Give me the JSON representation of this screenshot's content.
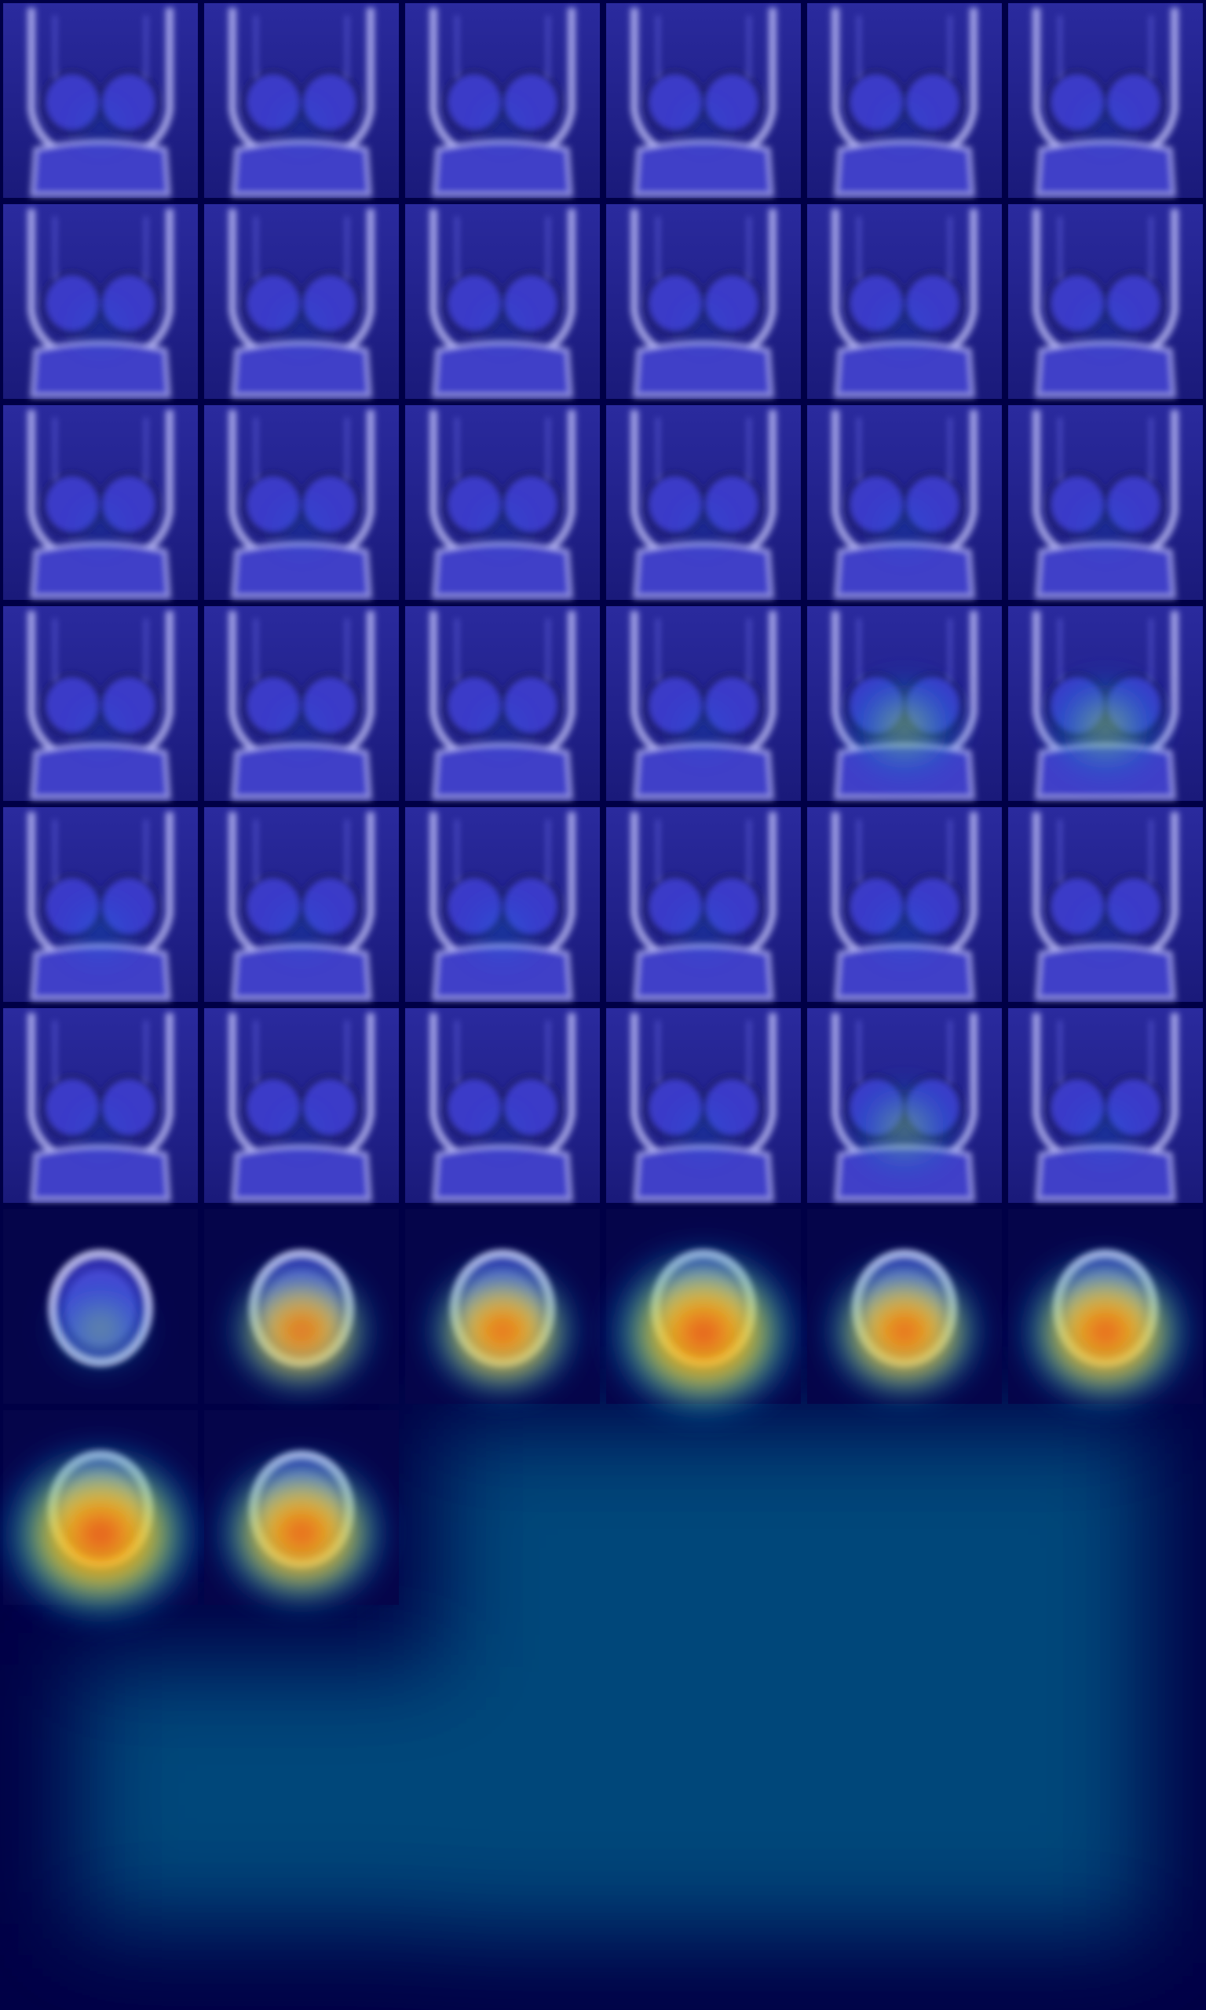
{
  "mosaic": {
    "description_visible_text": "",
    "grid": {
      "columns": 6,
      "filled_tiles": 44
    },
    "colors": {
      "background": "#000046",
      "tile_tint": "#5a5ae8",
      "tissue_highlight": "#c8c8ff",
      "empty_region": "#00477a",
      "heat_low": "#00c8ff",
      "heat_mid": "#ffe600",
      "heat_high": "#e61e1e"
    },
    "tiles": [
      {
        "heat": 0.05
      },
      {
        "heat": 0.05
      },
      {
        "heat": 0.02
      },
      {
        "heat": 0.02
      },
      {
        "heat": 0.02
      },
      {
        "heat": 0.05
      },
      {
        "heat": 0.08
      },
      {
        "heat": 0.05
      },
      {
        "heat": 0.02
      },
      {
        "heat": 0.02
      },
      {
        "heat": 0.08
      },
      {
        "heat": 0.05
      },
      {
        "heat": 0.05
      },
      {
        "heat": 0.1
      },
      {
        "heat": 0.05
      },
      {
        "heat": 0.05
      },
      {
        "heat": 0.15
      },
      {
        "heat": 0.1
      },
      {
        "heat": 0.05
      },
      {
        "heat": 0.05
      },
      {
        "heat": 0.05
      },
      {
        "heat": 0.15
      },
      {
        "heat": 0.45
      },
      {
        "heat": 0.45
      },
      {
        "heat": 0.25
      },
      {
        "heat": 0.15
      },
      {
        "heat": 0.25
      },
      {
        "heat": 0.15
      },
      {
        "heat": 0.2
      },
      {
        "heat": 0.05
      },
      {
        "heat": 0.05
      },
      {
        "heat": 0.02
      },
      {
        "heat": 0.02
      },
      {
        "heat": 0.15
      },
      {
        "heat": 0.35
      },
      {
        "heat": 0.2
      },
      {
        "heat": 0.35
      },
      {
        "heat": 0.6
      },
      {
        "heat": 0.65
      },
      {
        "heat": 0.95
      },
      {
        "heat": 0.7
      },
      {
        "heat": 0.8
      },
      {
        "heat": 1.0
      },
      {
        "heat": 0.8
      }
    ]
  }
}
